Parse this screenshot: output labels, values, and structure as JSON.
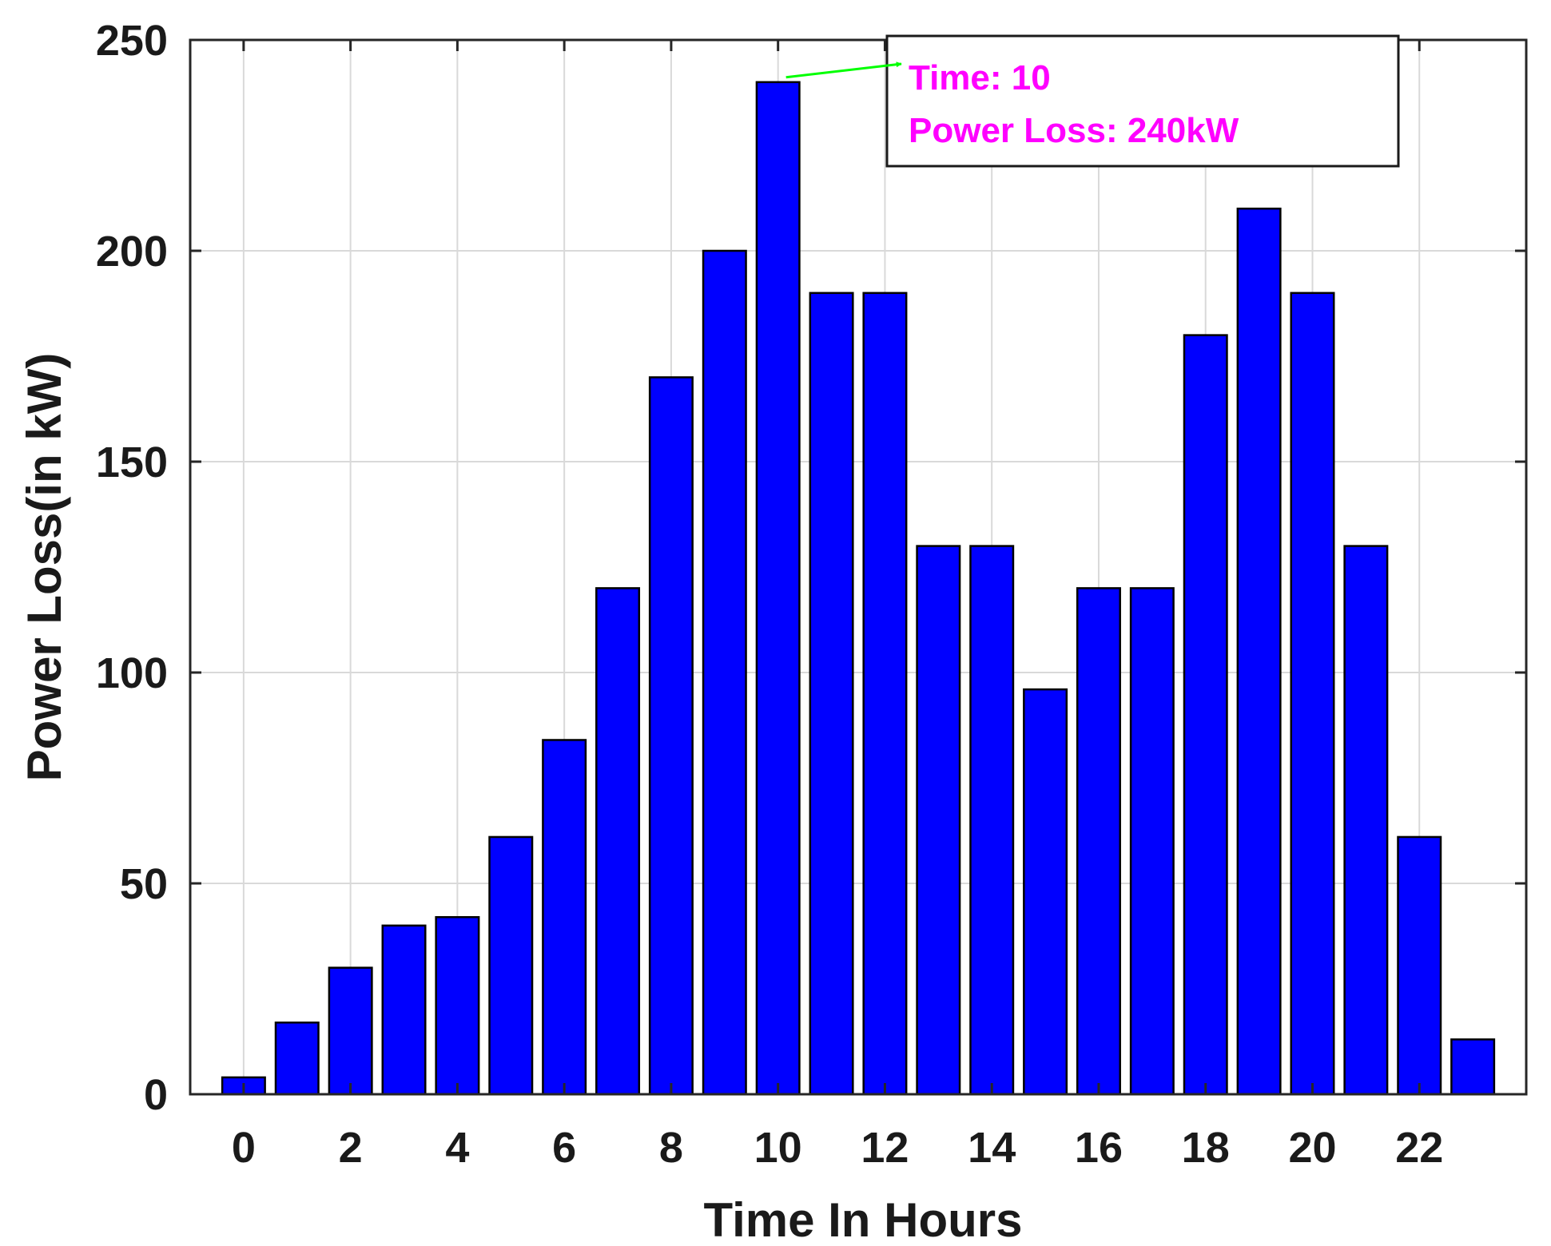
{
  "chart_data": {
    "type": "bar",
    "title": "",
    "xlabel": "Time In Hours",
    "ylabel": "Power Loss(in kW)",
    "x": [
      0,
      1,
      2,
      3,
      4,
      5,
      6,
      7,
      8,
      9,
      10,
      11,
      12,
      13,
      14,
      15,
      16,
      17,
      18,
      19,
      20,
      21,
      22,
      23
    ],
    "values": [
      4,
      17,
      30,
      40,
      42,
      61,
      84,
      120,
      170,
      200,
      240,
      190,
      190,
      130,
      130,
      96,
      120,
      120,
      180,
      210,
      190,
      130,
      61,
      13
    ],
    "xlim": [
      -1,
      24
    ],
    "ylim": [
      0,
      250
    ],
    "xticks": [
      0,
      2,
      4,
      6,
      8,
      10,
      12,
      14,
      16,
      18,
      20,
      22
    ],
    "yticks": [
      0,
      50,
      100,
      150,
      200,
      250
    ],
    "grid": true,
    "bar_color": "#0000ff",
    "annotation": {
      "line1": "Time: 10",
      "line2": "Power Loss: 240kW",
      "text_color": "#ff00ff",
      "arrow_color": "#00ff00",
      "target_x": 10,
      "target_y": 240
    }
  }
}
